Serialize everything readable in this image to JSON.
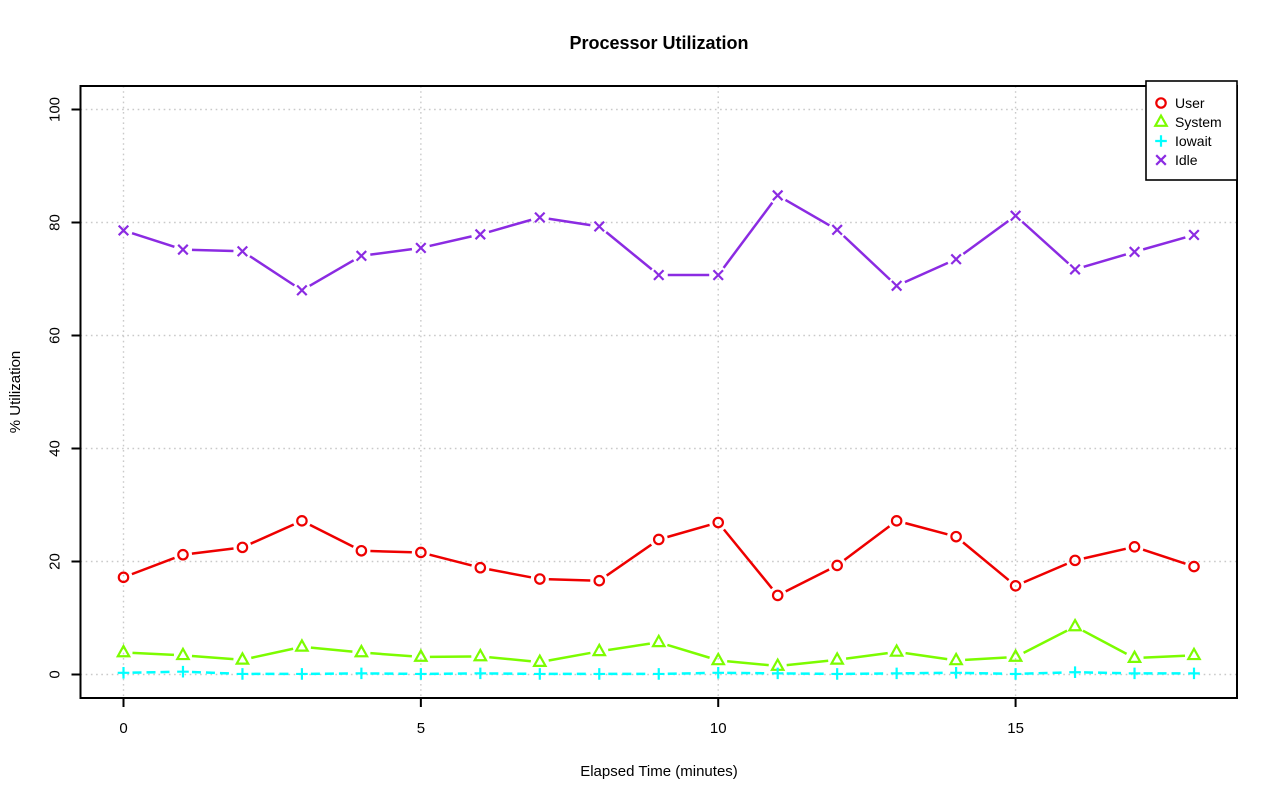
{
  "chart_data": {
    "type": "line",
    "title": "Processor Utilization",
    "xlabel": "Elapsed Time (minutes)",
    "ylabel": "% Utilization",
    "x": [
      0,
      1,
      2,
      3,
      4,
      5,
      6,
      7,
      8,
      9,
      10,
      11,
      12,
      13,
      14,
      15,
      16,
      17,
      18
    ],
    "series": [
      {
        "name": "User",
        "color": "#ee0000",
        "marker": "circle",
        "linestyle": "solid",
        "values": [
          17.2,
          21.2,
          22.5,
          27.2,
          21.9,
          21.6,
          18.9,
          16.9,
          16.6,
          23.9,
          26.9,
          14.0,
          19.3,
          27.2,
          24.4,
          15.7,
          20.2,
          22.6,
          19.1
        ]
      },
      {
        "name": "System",
        "color": "#7cfc00",
        "marker": "triangle",
        "linestyle": "solid",
        "values": [
          3.9,
          3.4,
          2.6,
          4.9,
          3.9,
          3.1,
          3.2,
          2.2,
          4.1,
          5.7,
          2.5,
          1.5,
          2.6,
          4.0,
          2.5,
          3.1,
          8.5,
          2.9,
          3.4
        ]
      },
      {
        "name": "Iowait",
        "color": "#00ffff",
        "marker": "plus",
        "linestyle": "dashed",
        "values": [
          0.3,
          0.5,
          0.1,
          0.1,
          0.2,
          0.1,
          0.2,
          0.1,
          0.1,
          0.1,
          0.3,
          0.2,
          0.1,
          0.2,
          0.3,
          0.1,
          0.4,
          0.2,
          0.2
        ]
      },
      {
        "name": "Idle",
        "color": "#8b2be2",
        "marker": "x",
        "linestyle": "solid",
        "values": [
          78.6,
          75.2,
          74.9,
          68.0,
          74.1,
          75.5,
          77.9,
          80.9,
          79.3,
          70.7,
          70.7,
          84.8,
          78.7,
          68.8,
          73.5,
          81.2,
          71.7,
          74.8,
          77.8
        ]
      }
    ],
    "xticks": [
      0,
      5,
      10,
      15
    ],
    "yticks": [
      0,
      20,
      40,
      60,
      80,
      100
    ],
    "xtick_labels": [
      "0",
      "5",
      "10",
      "15"
    ],
    "ytick_labels": [
      "0",
      "20",
      "40",
      "60",
      "80",
      "100"
    ],
    "xlim": [
      -0.723,
      18.723
    ],
    "ylim": [
      -4.16,
      104.16
    ],
    "grid": true,
    "grid_style": "dotted",
    "grid_color": "#c9c9c9",
    "legend_position": "top-right",
    "legend_entries": [
      "User",
      "System",
      "Iowait",
      "Idle"
    ],
    "marker_mode": "points-with-gapped-lines"
  }
}
